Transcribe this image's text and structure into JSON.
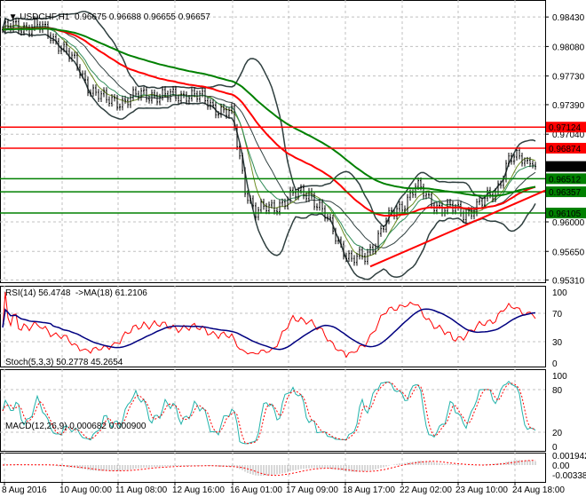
{
  "header": {
    "symbol": "USDCHF,H1",
    "values": "0.96675 0.96688 0.96655 0.96657"
  },
  "rsi": {
    "label": "RSI(14) 56.4748  ->MA(18) 61.2106",
    "ticks": [
      "100",
      "70",
      "30",
      "0"
    ]
  },
  "stoch": {
    "label": "Stoch(5,3,3) 50.2778 45.2654",
    "ticks": [
      "100",
      "80",
      "20",
      "0"
    ]
  },
  "macd": {
    "label": "MACD(12,26,9) 0.000682 0.000900",
    "ticks": [
      "0.001942",
      "0.00",
      "-0.003381"
    ]
  },
  "colors": {
    "up": "#000000",
    "red": "#ff0000",
    "green": "#008000",
    "band": "#2f3f3f",
    "rsi": "#ff0000",
    "rsima": "#000080",
    "stochK": "#20b2aa"
  },
  "chart_data": {
    "type": "line",
    "title": "USDCHF,H1",
    "price_axis_ticks": [
      "0.98430",
      "0.98080",
      "0.97730",
      "0.97390",
      "0.97040",
      "0.96000",
      "0.95650",
      "0.95310"
    ],
    "price_axis_values": [
      0.9843,
      0.9808,
      0.9773,
      0.9739,
      0.9704,
      0.96,
      0.9565,
      0.9531
    ],
    "ylim": [
      0.9531,
      0.9865
    ],
    "levels": [
      {
        "label": "0.97124",
        "value": 0.97124,
        "color": "#ff0000"
      },
      {
        "label": "0.96874",
        "value": 0.96874,
        "color": "#ff0000"
      },
      {
        "label": "0.96657",
        "value": 0.96657,
        "color": "#000000"
      },
      {
        "label": "0.96512",
        "value": 0.96512,
        "color": "#008000"
      },
      {
        "label": "0.96357",
        "value": 0.96357,
        "color": "#008000"
      },
      {
        "label": "0.96105",
        "value": 0.96105,
        "color": "#008000"
      }
    ],
    "time_labels": [
      "8 Aug 2016",
      "10 Aug 00:00",
      "11 Aug 08:00",
      "12 Aug 16:00",
      "16 Aug 01:00",
      "17 Aug 09:00",
      "18 Aug 17:00",
      "22 Aug 02:00",
      "23 Aug 10:00",
      "24 Aug 18:00"
    ],
    "close_anchors": [
      [
        0,
        0.9828
      ],
      [
        12,
        0.9834
      ],
      [
        22,
        0.9811
      ],
      [
        32,
        0.9763
      ],
      [
        39,
        0.9742
      ],
      [
        49,
        0.9747
      ],
      [
        56,
        0.9753
      ],
      [
        62,
        0.9747
      ],
      [
        69,
        0.9753
      ],
      [
        77,
        0.9742
      ],
      [
        86,
        0.9726
      ],
      [
        91,
        0.9642
      ],
      [
        95,
        0.9611
      ],
      [
        100,
        0.9616
      ],
      [
        106,
        0.9626
      ],
      [
        115,
        0.9637
      ],
      [
        120,
        0.9611
      ],
      [
        126,
        0.9579
      ],
      [
        131,
        0.9553
      ],
      [
        136,
        0.9558
      ],
      [
        143,
        0.9595
      ],
      [
        150,
        0.9621
      ],
      [
        155,
        0.9642
      ],
      [
        160,
        0.9626
      ],
      [
        166,
        0.9616
      ],
      [
        173,
        0.9611
      ],
      [
        180,
        0.9621
      ],
      [
        185,
        0.9637
      ],
      [
        190,
        0.9674
      ],
      [
        195,
        0.9674
      ],
      [
        200,
        0.96657
      ]
    ],
    "trendline": [
      [
        138,
        0.9547
      ],
      [
        205,
        0.9639
      ]
    ]
  }
}
